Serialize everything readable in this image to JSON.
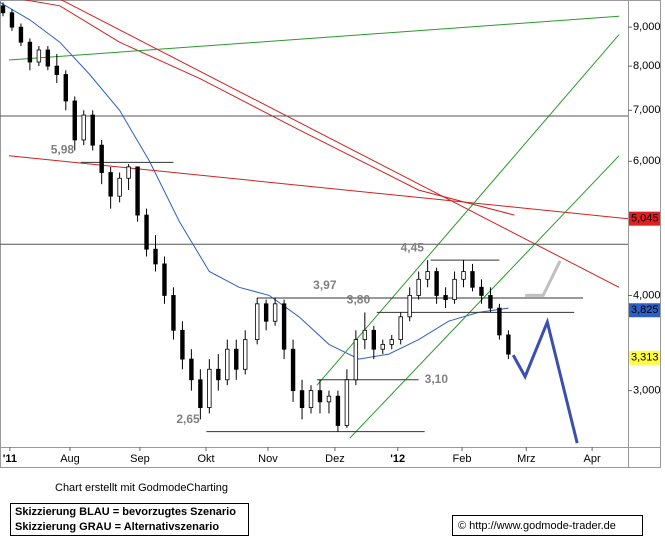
{
  "chart_data": {
    "type": "candlestick",
    "xlim": [
      0,
      210
    ],
    "xticks": [
      {
        "value": 3.3,
        "label": "'11"
      },
      {
        "value": 23.4,
        "label": "Aug"
      },
      {
        "value": 46.8,
        "label": "Sep"
      },
      {
        "value": 68.9,
        "label": "Okt"
      },
      {
        "value": 89.6,
        "label": "Nov"
      },
      {
        "value": 112,
        "label": "Dez"
      },
      {
        "value": 133,
        "label": "'12"
      },
      {
        "value": 154.5,
        "label": "Feb"
      },
      {
        "value": 176,
        "label": "Mrz"
      },
      {
        "value": 198,
        "label": "Apr"
      }
    ],
    "ylim": [
      2.53,
      9.77
    ],
    "log_scale": true,
    "yticks": [
      {
        "value": 9,
        "label": "9,000"
      },
      {
        "value": 8,
        "label": "8,000"
      },
      {
        "value": 7,
        "label": "7,000"
      },
      {
        "value": 6,
        "label": "6,000"
      },
      {
        "value": 4,
        "label": "4,000"
      },
      {
        "value": 3,
        "label": "3,000"
      }
    ],
    "x": [
      1,
      4,
      7,
      10,
      13,
      16,
      19,
      22,
      25,
      28,
      31,
      34,
      37,
      40,
      43,
      46,
      49,
      52,
      55,
      58,
      61,
      64,
      67,
      70,
      73,
      76,
      79,
      82,
      86,
      89,
      92,
      95,
      98,
      101,
      104,
      107,
      110,
      113,
      116,
      119,
      122,
      125,
      128,
      131,
      134,
      137,
      140,
      143,
      146,
      149,
      152,
      155,
      158,
      161,
      164,
      167,
      170
    ],
    "open": [
      9.6,
      9.4,
      9.0,
      8.6,
      8.1,
      8.4,
      8.0,
      7.8,
      7.2,
      6.4,
      6.9,
      6.3,
      5.8,
      5.4,
      5.7,
      5.9,
      5.1,
      4.6,
      4.4,
      4.0,
      3.6,
      3.3,
      3.1,
      2.85,
      3.2,
      3.1,
      3.4,
      3.2,
      3.5,
      3.9,
      3.7,
      3.9,
      3.4,
      3.0,
      2.85,
      3.0,
      2.9,
      2.95,
      2.7,
      3.1,
      3.5,
      3.6,
      3.4,
      3.45,
      3.5,
      3.75,
      4.0,
      4.2,
      4.3,
      4.0,
      3.95,
      4.2,
      4.3,
      4.1,
      4.0,
      3.85,
      3.55
    ],
    "high": [
      9.7,
      9.5,
      9.1,
      8.7,
      8.5,
      8.5,
      8.3,
      7.9,
      7.3,
      7.0,
      7.0,
      6.4,
      5.9,
      5.8,
      5.95,
      5.9,
      5.2,
      4.8,
      4.5,
      4.1,
      3.7,
      3.4,
      3.2,
      3.3,
      3.35,
      3.5,
      3.5,
      3.6,
      3.97,
      3.95,
      3.97,
      3.95,
      3.5,
      3.1,
      3.05,
      3.1,
      3.0,
      3.0,
      3.2,
      3.6,
      3.8,
      3.65,
      3.5,
      3.55,
      3.8,
      4.1,
      4.3,
      4.45,
      4.35,
      4.1,
      4.3,
      4.45,
      4.4,
      4.2,
      4.1,
      3.9,
      3.6
    ],
    "low": [
      9.3,
      8.9,
      8.5,
      7.9,
      8.0,
      7.9,
      7.6,
      7.0,
      6.2,
      6.3,
      6.2,
      5.6,
      5.2,
      5.3,
      5.5,
      5.0,
      4.5,
      4.3,
      3.9,
      3.5,
      3.2,
      3.0,
      2.75,
      2.8,
      3.0,
      3.05,
      3.1,
      3.15,
      3.45,
      3.6,
      3.65,
      3.3,
      2.9,
      2.75,
      2.8,
      2.8,
      2.8,
      2.65,
      2.68,
      3.05,
      3.4,
      3.3,
      3.35,
      3.4,
      3.45,
      3.7,
      3.95,
      4.1,
      3.9,
      3.85,
      3.9,
      4.1,
      4.05,
      3.9,
      3.8,
      3.5,
      3.3
    ],
    "close": [
      9.4,
      9.0,
      8.6,
      8.1,
      8.4,
      8.0,
      7.8,
      7.2,
      6.4,
      6.9,
      6.3,
      5.8,
      5.4,
      5.7,
      5.9,
      5.1,
      4.6,
      4.4,
      4.0,
      3.6,
      3.3,
      3.1,
      2.85,
      3.2,
      3.1,
      3.4,
      3.2,
      3.5,
      3.9,
      3.7,
      3.9,
      3.4,
      3.0,
      2.85,
      3.0,
      2.9,
      2.95,
      2.7,
      3.1,
      3.5,
      3.6,
      3.4,
      3.45,
      3.5,
      3.75,
      4.0,
      4.2,
      4.3,
      4.0,
      3.95,
      4.2,
      4.3,
      4.1,
      4.0,
      3.85,
      3.55,
      3.35
    ],
    "overlays": [
      {
        "color": "#2e5fc4",
        "x": [
          0,
          10,
          20,
          30,
          40,
          50,
          60,
          70,
          80,
          90,
          100,
          110,
          120,
          130,
          140,
          150,
          160,
          170
        ],
        "values": [
          9.7,
          9.2,
          8.6,
          7.8,
          7.0,
          6.0,
          5.0,
          4.3,
          4.1,
          4.0,
          3.75,
          3.45,
          3.3,
          3.35,
          3.5,
          3.7,
          3.8,
          3.85
        ]
      },
      {
        "color": "#d42020",
        "x": [
          0,
          20,
          40,
          67,
          100,
          140,
          172
        ],
        "values": [
          9.9,
          9.6,
          8.6,
          7.7,
          6.6,
          5.5,
          5.1
        ]
      },
      {
        "color": "#d42020",
        "x": [
          20,
          207
        ],
        "values": [
          9.8,
          4.1
        ]
      },
      {
        "color": "#d42020",
        "x": [
          3,
          210
        ],
        "values": [
          6.1,
          5.045
        ]
      },
      {
        "color": "#2a9a2a",
        "x": [
          3,
          207
        ],
        "values": [
          8.15,
          9.3
        ]
      },
      {
        "color": "#2a9a2a",
        "x": [
          106,
          207
        ],
        "values": [
          3.05,
          8.8
        ]
      },
      {
        "color": "#2a9a2a",
        "x": [
          117,
          207
        ],
        "values": [
          2.6,
          6.1
        ]
      },
      {
        "color": "#555555",
        "x": [
          0,
          210
        ],
        "values": [
          6.88,
          6.88
        ]
      },
      {
        "color": "#555555",
        "x": [
          0,
          210
        ],
        "values": [
          4.67,
          4.67
        ]
      }
    ],
    "levels": {
      "values": [
        5.98,
        3.97,
        3.8,
        4.45,
        3.1,
        2.65
      ],
      "value_labels": [
        "5,98",
        "3,97",
        "3,80",
        "4,45",
        "3,10",
        "2,65"
      ],
      "x_start": [
        27,
        86,
        126,
        144,
        106,
        69
      ],
      "x_end": [
        58,
        195,
        192,
        167,
        140,
        142
      ]
    },
    "scenarios": [
      {
        "color": "#3a4fb0",
        "x": [
          171.6,
          175.6,
          183,
          193
        ],
        "values": [
          3.34,
          3.13,
          3.69,
          2.56
        ]
      },
      {
        "color": "#c0c0c0",
        "x": [
          175.6,
          181.6,
          187.3
        ],
        "values": [
          4.0,
          4.0,
          4.44
        ]
      }
    ],
    "price_markers": {
      "values": [
        5.045,
        3.825,
        3.313
      ],
      "value_labels": [
        "5,045",
        "3,825",
        "3,313"
      ],
      "colors": [
        "#e02020",
        "#2e5fc4",
        "#ffff40"
      ],
      "text_colors": [
        "#ffffff",
        "#ffffff",
        "#000000"
      ]
    },
    "credit": "Chart erstellt mit GodmodeCharting",
    "legend_lines": [
      "Skizzierung BLAU = bevorzugtes Szenario",
      "Skizzierung GRAU = Alternativszenario"
    ],
    "source": "© http://www.godmode-trader.de"
  }
}
